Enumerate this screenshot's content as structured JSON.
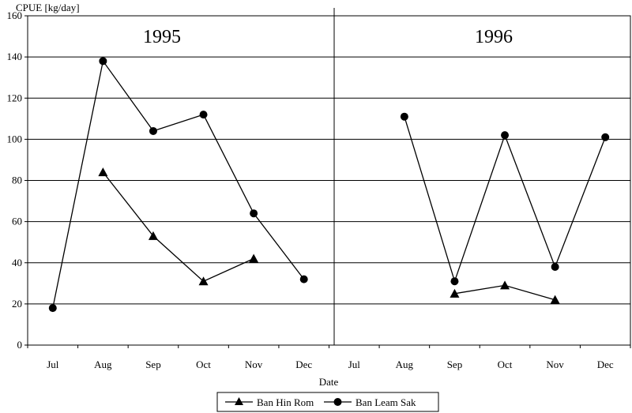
{
  "chart_data": {
    "type": "line",
    "title": "",
    "ylabel": "CPUE [kg/day]",
    "xlabel": "Date",
    "ylim": [
      0,
      160
    ],
    "yticks": [
      0,
      20,
      40,
      60,
      80,
      100,
      120,
      140,
      160
    ],
    "categories": [
      "Jul",
      "Aug",
      "Sep",
      "Oct",
      "Nov",
      "Dec",
      "Jul",
      "Aug",
      "Sep",
      "Oct",
      "Nov",
      "Dec"
    ],
    "panels": [
      "1995",
      "1996"
    ],
    "grid": true,
    "legend_position": "bottom",
    "series": [
      {
        "name": "Ban Hin Rom",
        "marker": "triangle",
        "values": [
          null,
          84,
          53,
          31,
          42,
          null,
          null,
          null,
          25,
          29,
          22,
          null
        ]
      },
      {
        "name": "Ban Leam Sak",
        "marker": "circle",
        "values": [
          18,
          138,
          104,
          112,
          64,
          32,
          null,
          111,
          31,
          102,
          38,
          101
        ]
      }
    ]
  }
}
